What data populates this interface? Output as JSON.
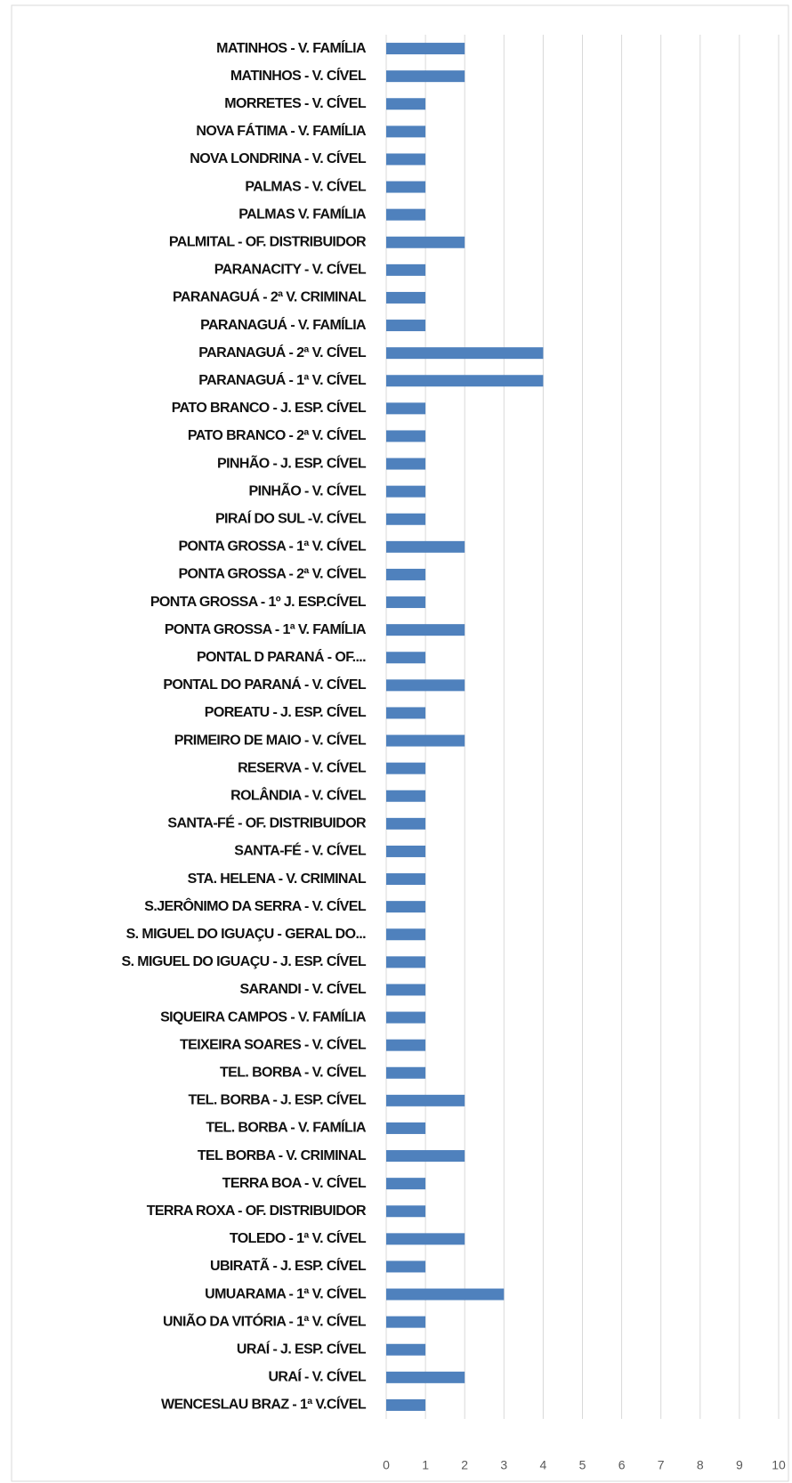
{
  "chart_data": {
    "type": "hbar",
    "color": "#4f81bd",
    "grid": true,
    "categories": [
      "MATINHOS - V. FAMÍLIA",
      "MATINHOS - V. CÍVEL",
      "MORRETES - V. CÍVEL",
      "NOVA FÁTIMA - V. FAMÍLIA",
      "NOVA LONDRINA - V. CÍVEL",
      "PALMAS - V. CÍVEL",
      "PALMAS V. FAMÍLIA",
      "PALMITAL - OF. DISTRIBUIDOR",
      "PARANACITY - V. CÍVEL",
      "PARANAGUÁ - 2ª V. CRIMINAL",
      "PARANAGUÁ - V. FAMÍLIA",
      "PARANAGUÁ - 2ª V. CÍVEL",
      "PARANAGUÁ - 1ª V. CÍVEL",
      "PATO BRANCO - J. ESP. CÍVEL",
      "PATO BRANCO - 2ª V. CÍVEL",
      "PINHÃO - J. ESP. CÍVEL",
      "PINHÃO - V. CÍVEL",
      "PIRAÍ DO SUL -V. CÍVEL",
      "PONTA GROSSA - 1ª V. CÍVEL",
      "PONTA GROSSA - 2ª V. CÍVEL",
      "PONTA GROSSA - 1º J. ESP.CÍVEL",
      "PONTA GROSSA - 1ª V. FAMÍLIA",
      "PONTAL D PARANÁ - OF....",
      "PONTAL DO PARANÁ - V. CÍVEL",
      "POREATU - J. ESP. CÍVEL",
      "PRIMEIRO DE MAIO - V. CÍVEL",
      "RESERVA - V. CÍVEL",
      "ROLÂNDIA - V. CÍVEL",
      "SANTA-FÉ - OF. DISTRIBUIDOR",
      "SANTA-FÉ - V. CÍVEL",
      "STA. HELENA - V. CRIMINAL",
      "S.JERÔNIMO DA SERRA - V. CÍVEL",
      "S. MIGUEL DO IGUAÇU - GERAL DO...",
      "S. MIGUEL DO IGUAÇU - J. ESP. CÍVEL",
      "SARANDI - V. CÍVEL",
      "SIQUEIRA CAMPOS - V. FAMÍLIA",
      "TEIXEIRA SOARES - V. CÍVEL",
      "TEL. BORBA - V. CÍVEL",
      "TEL. BORBA - J. ESP. CÍVEL",
      "TEL. BORBA - V.  FAMÍLIA",
      "TEL BORBA - V. CRIMINAL",
      "TERRA BOA - V. CÍVEL",
      "TERRA ROXA - OF. DISTRIBUIDOR",
      "TOLEDO - 1ª V. CÍVEL",
      "UBIRATÃ - J. ESP. CÍVEL",
      "UMUARAMA - 1ª V. CÍVEL",
      "UNIÃO DA VITÓRIA - 1ª V. CÍVEL",
      "URAÍ - J. ESP. CÍVEL",
      "URAÍ - V. CÍVEL",
      "WENCESLAU BRAZ - 1ª V.CÍVEL"
    ],
    "values": [
      2,
      2,
      1,
      1,
      1,
      1,
      1,
      2,
      1,
      1,
      1,
      4,
      4,
      1,
      1,
      1,
      1,
      1,
      2,
      1,
      1,
      2,
      1,
      2,
      1,
      2,
      1,
      1,
      1,
      1,
      1,
      1,
      1,
      1,
      1,
      1,
      1,
      1,
      2,
      1,
      2,
      1,
      1,
      2,
      1,
      3,
      1,
      1,
      2,
      1
    ],
    "xlim": [
      0,
      10
    ],
    "xticks": [
      0,
      1,
      2,
      3,
      4,
      5,
      6,
      7,
      8,
      9,
      10
    ]
  }
}
